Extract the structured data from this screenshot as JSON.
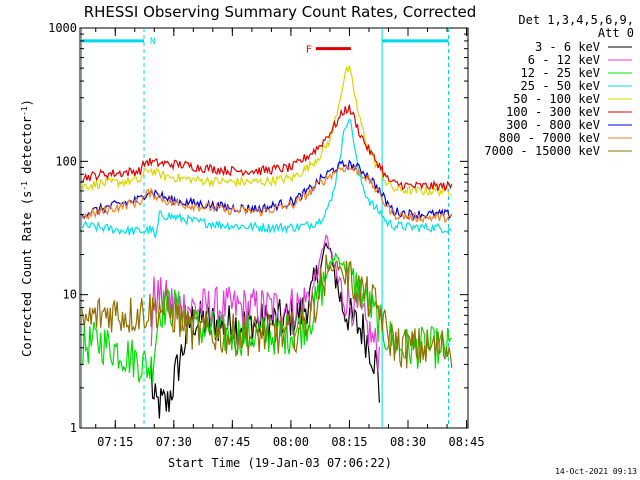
{
  "chart_data": {
    "type": "line",
    "title": "RHESSI Observing Summary Count Rates, Corrected",
    "ylabel": "Corrected Count Rate (s^-1 detector^-1)",
    "xlabel": "Start Time (19-Jan-03 07:06:22)",
    "yscale": "log",
    "ylim": [
      1,
      1000
    ],
    "xlim_minutes": [
      -0.4,
      99
    ],
    "y_ticks": [
      {
        "value": 1,
        "label": "1"
      },
      {
        "value": 10,
        "label": "10"
      },
      {
        "value": 100,
        "label": "100"
      },
      {
        "value": 1000,
        "label": "1000"
      }
    ],
    "x_ticks": [
      {
        "value": 8.63,
        "label": "07:15"
      },
      {
        "value": 23.63,
        "label": "07:30"
      },
      {
        "value": 38.63,
        "label": "07:45"
      },
      {
        "value": 53.63,
        "label": "08:00"
      },
      {
        "value": 68.63,
        "label": "08:15"
      },
      {
        "value": 83.63,
        "label": "08:30"
      },
      {
        "value": 98.63,
        "label": "08:45"
      }
    ],
    "legend_header": [
      "Det 1,3,4,5,6,9,",
      "Att 0"
    ],
    "series": [
      {
        "name": "3 - 6 keV",
        "color": "#000000",
        "x": [
          0.0,
          8.0,
          16.0,
          17.5,
          18.5,
          22.0,
          28.0,
          36.0,
          44.0,
          52.0,
          56.0,
          59.0,
          61.0,
          62.5,
          64.0,
          65.5,
          67.0,
          68.5,
          70.0,
          72.0,
          74.0,
          75.5,
          76.5,
          78.0,
          80.0,
          85.0,
          95.0
        ],
        "y": [
          null,
          null,
          null,
          3.5,
          1.5,
          1.5,
          6.5,
          6.0,
          6.0,
          6.5,
          7.0,
          10.0,
          15.0,
          24.0,
          20.0,
          12.0,
          8.0,
          7.0,
          6.0,
          5.5,
          4.0,
          3.0,
          1.5,
          null,
          null,
          null,
          null
        ]
      },
      {
        "name": "6 - 12 keV",
        "color": "#e040d8",
        "x": [
          14.0,
          17.5,
          18.5,
          22.0,
          28.0,
          36.0,
          44.0,
          52.0,
          56.0,
          59.0,
          61.0,
          62.5,
          64.0,
          65.5,
          67.0,
          68.5,
          70.0,
          72.0,
          74.0,
          75.5,
          76.5
        ],
        "y": [
          null,
          3.5,
          10.0,
          9.0,
          8.0,
          8.0,
          8.0,
          8.0,
          8.5,
          10.0,
          17.0,
          28.0,
          20.0,
          13.0,
          10.0,
          9.0,
          8.0,
          6.5,
          5.0,
          4.0,
          3.5
        ]
      },
      {
        "name": "12 - 25 keV",
        "color": "#00e000",
        "x": [
          0.0,
          4.0,
          8.0,
          12.0,
          16.0,
          18.0,
          20.0,
          24.0,
          28.0,
          36.0,
          44.0,
          52.0,
          56.0,
          59.0,
          61.0,
          63.0,
          65.0,
          67.0,
          69.0,
          71.0,
          74.0,
          77.0,
          78.0,
          82.0,
          88.0,
          95.0
        ],
        "y": [
          4.0,
          4.5,
          4.0,
          3.5,
          3.0,
          2.8,
          8.0,
          8.0,
          6.0,
          5.0,
          5.0,
          5.0,
          5.5,
          7.0,
          10.0,
          15.0,
          20.0,
          17.0,
          13.0,
          11.0,
          8.0,
          5.5,
          5.0,
          4.0,
          4.0,
          4.0
        ]
      },
      {
        "name": "25 - 50 keV",
        "color": "#00e0e8",
        "x": [
          0.0,
          4.0,
          8.0,
          12.0,
          16.0,
          18.0,
          19.0,
          20.0,
          24.0,
          30.0,
          38.0,
          46.0,
          54.0,
          58.0,
          61.0,
          64.0,
          66.0,
          67.5,
          68.5,
          69.5,
          71.0,
          73.0,
          75.0,
          77.0,
          78.0,
          80.0,
          85.0,
          90.0,
          95.0
        ],
        "y": [
          33,
          32,
          31,
          30,
          30,
          31,
          26,
          40,
          38,
          35,
          33,
          32,
          32,
          33,
          36,
          50,
          100,
          180,
          220,
          160,
          80,
          55,
          45,
          40,
          35,
          33,
          32,
          32,
          31
        ]
      },
      {
        "name": "50 - 100 keV",
        "color": "#d8d800",
        "x": [
          0.0,
          5.0,
          10.0,
          15.0,
          17.0,
          19.0,
          21.0,
          25.0,
          30.0,
          38.0,
          46.0,
          54.0,
          58.0,
          61.0,
          64.0,
          66.0,
          67.5,
          68.5,
          69.5,
          71.0,
          73.0,
          75.0,
          77.0,
          78.0,
          80.0,
          85.0,
          90.0,
          95.0
        ],
        "y": [
          65,
          68,
          70,
          72,
          88,
          82,
          78,
          75,
          72,
          70,
          70,
          75,
          90,
          110,
          150,
          280,
          450,
          500,
          380,
          220,
          140,
          100,
          80,
          70,
          62,
          60,
          60,
          60
        ]
      },
      {
        "name": "100 - 300 keV",
        "color": "#e00000",
        "x": [
          0.0,
          5.0,
          10.0,
          15.0,
          16.5,
          18.0,
          21.0,
          25.0,
          30.0,
          38.0,
          46.0,
          54.0,
          58.0,
          61.0,
          64.0,
          66.0,
          67.5,
          68.5,
          69.5,
          71.0,
          73.0,
          75.0,
          77.0,
          78.0,
          80.0,
          85.0,
          90.0,
          95.0
        ],
        "y": [
          75,
          80,
          82,
          85,
          100,
          98,
          96,
          95,
          90,
          85,
          85,
          90,
          110,
          130,
          170,
          210,
          245,
          250,
          225,
          170,
          130,
          105,
          88,
          75,
          68,
          65,
          65,
          65
        ]
      },
      {
        "name": "300 - 800 keV",
        "color": "#0000e0",
        "x": [
          0.0,
          5.0,
          10.0,
          15.0,
          17.0,
          19.0,
          22.0,
          25.0,
          30.0,
          38.0,
          46.0,
          54.0,
          58.0,
          61.0,
          64.0,
          66.0,
          68.0,
          70.0,
          72.0,
          74.0,
          76.0,
          78.0,
          80.0,
          85.0,
          90.0,
          95.0
        ],
        "y": [
          40,
          44,
          48,
          52,
          60,
          58,
          52,
          50,
          48,
          45,
          44,
          50,
          60,
          72,
          85,
          92,
          95,
          92,
          85,
          75,
          62,
          50,
          42,
          40,
          40,
          40
        ]
      },
      {
        "name": "800 - 7000 keV",
        "color": "#f08020",
        "x": [
          0.0,
          5.0,
          10.0,
          15.0,
          17.0,
          19.0,
          22.0,
          25.0,
          30.0,
          38.0,
          46.0,
          54.0,
          58.0,
          61.0,
          64.0,
          66.0,
          68.0,
          70.0,
          72.0,
          74.0,
          76.0,
          78.0,
          80.0,
          85.0,
          90.0,
          95.0
        ],
        "y": [
          38,
          42,
          46,
          50,
          58,
          56,
          50,
          48,
          46,
          43,
          42,
          47,
          57,
          68,
          80,
          88,
          90,
          87,
          80,
          70,
          58,
          47,
          40,
          38,
          38,
          38
        ]
      },
      {
        "name": "7000 - 15000 keV",
        "color": "#907000",
        "x": [
          0.0,
          4.0,
          8.0,
          12.0,
          16.0,
          20.0,
          24.0,
          28.0,
          36.0,
          44.0,
          52.0,
          56.0,
          59.0,
          61.0,
          63.0,
          65.0,
          67.0,
          69.0,
          71.0,
          74.0,
          77.0,
          78.0,
          82.0,
          88.0,
          95.0
        ],
        "y": [
          6.0,
          7.0,
          7.5,
          7.0,
          7.5,
          8.0,
          7.0,
          5.5,
          5.0,
          5.0,
          5.0,
          5.5,
          7.5,
          11.0,
          15.0,
          17.0,
          15.0,
          13.0,
          11.0,
          9.0,
          7.0,
          5.0,
          4.0,
          4.0,
          4.0
        ]
      }
    ],
    "attenuator_bars": [
      {
        "x_start": 0.0,
        "x_end": 16.0,
        "y": 800,
        "label": "N"
      },
      {
        "x_start": 77.0,
        "x_end": 94.0,
        "y": 800,
        "label": ""
      }
    ],
    "flare_bar": {
      "label": "F",
      "x_start": 60.0,
      "x_end": 69.0,
      "y": 700
    },
    "vertical_lines": [
      {
        "x": 0.0,
        "style": "solid"
      },
      {
        "x": 16.0,
        "style": "dashed"
      },
      {
        "x": 77.0,
        "style": "solid"
      },
      {
        "x": 94.0,
        "style": "dashed"
      }
    ],
    "footer_timestamp": "14-Oct-2021 09:13"
  }
}
